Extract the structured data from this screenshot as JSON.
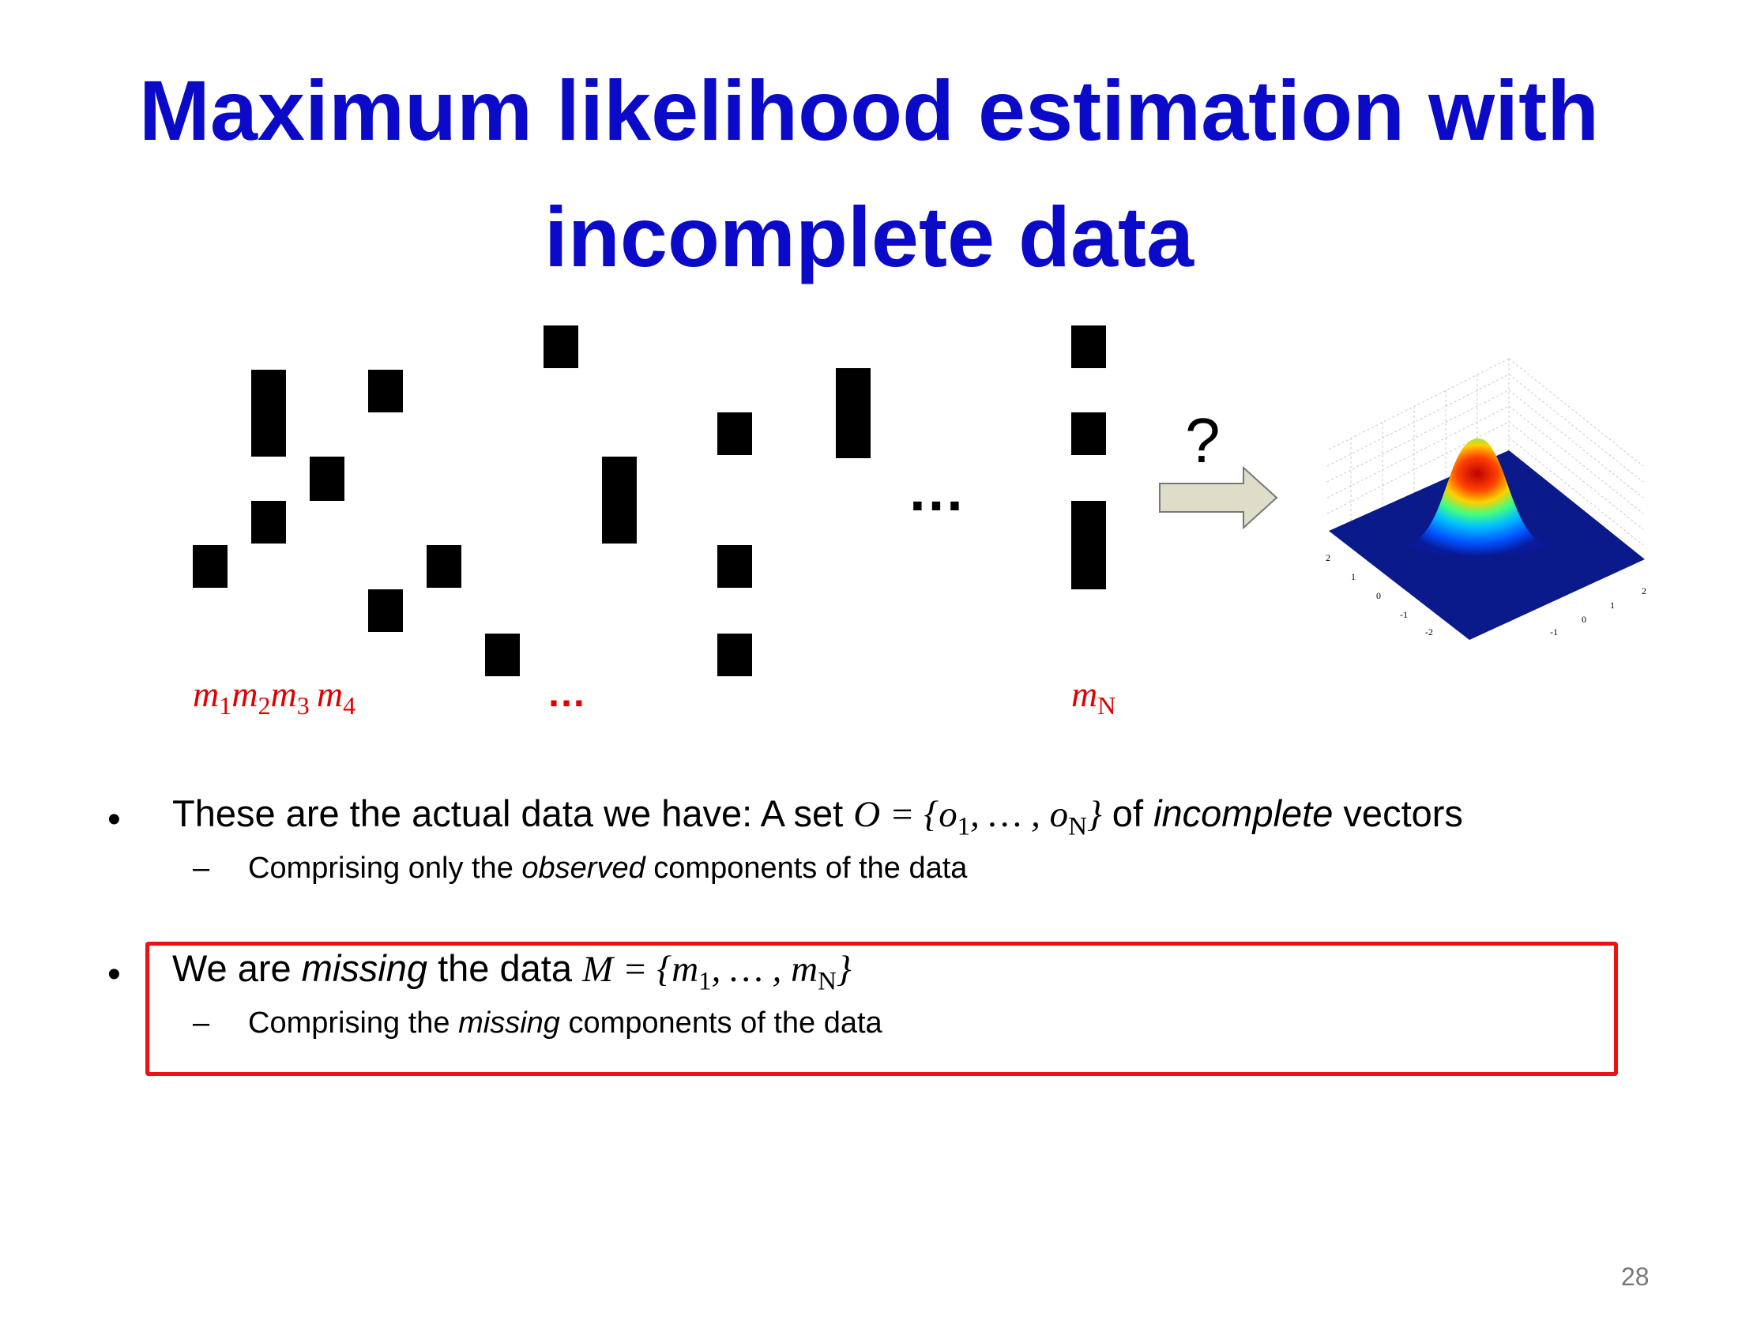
{
  "title": {
    "line1": "Maximum likelihood estimation with",
    "line2": "incomplete data"
  },
  "diagram": {
    "labels": {
      "m1": "m",
      "m1_sub": "1",
      "m2": "m",
      "m2_sub": "2",
      "m3": "m",
      "m3_sub": "3",
      "m4": "m",
      "m4_sub": "4",
      "mN": "m",
      "mN_sub": "N"
    },
    "ellipsis_red": "…",
    "ellipsis_black": "…",
    "question": "?"
  },
  "bullets": [
    {
      "text_a": "These are the actual data we have:  A set ",
      "math": "O = {o",
      "sub1": "1",
      "math_mid": ", … , o",
      "sub2": "N",
      "math_end": "}",
      "text_b": " of ",
      "italic": "incomplete",
      "text_c": " vectors",
      "subbullet": {
        "dash": "–",
        "text_a": "Comprising only the ",
        "italic": "observed",
        "text_b": " components of the data"
      }
    },
    {
      "text_a": "We are ",
      "italic": "missing",
      "text_b": " the data ",
      "math": "M = {m",
      "sub1": "1",
      "math_mid": ", … , m",
      "sub2": "N",
      "math_end": "}",
      "subbullet": {
        "dash": "–",
        "text_a": "Comprising the ",
        "italic": "missing",
        "text_b": " components of the data"
      }
    }
  ],
  "bullet_char": "•",
  "page_number": "28",
  "plot_axis_ticks": [
    "2",
    "1",
    "0",
    "-1",
    "-2"
  ]
}
